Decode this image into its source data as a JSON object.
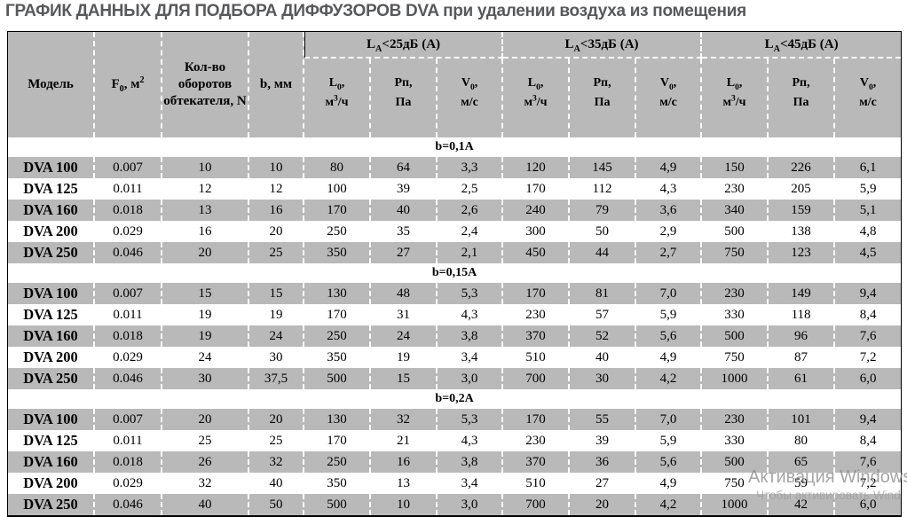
{
  "title": "ГРАФИК ДАННЫХ ДЛЯ ПОДБОРА ДИФФУЗОРОВ DVA при удалении воздуха из помещения",
  "colors": {
    "header_gray": "#b9b9b9",
    "row_gray": "#b9b9b9",
    "row_white": "#ffffff",
    "title_color": "#58595b",
    "border_black": "#000000",
    "separator_dashed": "#ffffff",
    "watermark_gray": "#8c8c8c"
  },
  "table": {
    "header": {
      "model": "Модель",
      "f0": "F~0~, м^2^",
      "turns": "Кол-во оборотов обтекателя, N",
      "b": "b, мм",
      "groups": [
        "L~A~<25дБ (А)",
        "L~A~<35дБ (А)",
        "L~A~<45дБ (А)"
      ],
      "subcols": [
        "L~0~,|м^3^/ч",
        "Рп,|Па",
        "V~0~,|м/с"
      ]
    },
    "sections": [
      {
        "band": "b=0,1А",
        "rows": [
          {
            "model": "DVA 100",
            "values": [
              "0.007",
              "10",
              "10",
              "80",
              "64",
              "3,3",
              "120",
              "145",
              "4,9",
              "150",
              "226",
              "6,1"
            ]
          },
          {
            "model": "DVA 125",
            "values": [
              "0.011",
              "12",
              "12",
              "100",
              "39",
              "2,5",
              "170",
              "112",
              "4,3",
              "230",
              "205",
              "5,9"
            ]
          },
          {
            "model": "DVA 160",
            "values": [
              "0.018",
              "13",
              "16",
              "170",
              "40",
              "2,6",
              "240",
              "79",
              "3,6",
              "340",
              "159",
              "5,1"
            ]
          },
          {
            "model": "DVA 200",
            "values": [
              "0.029",
              "16",
              "20",
              "250",
              "35",
              "2,4",
              "300",
              "50",
              "2,9",
              "500",
              "138",
              "4,8"
            ]
          },
          {
            "model": "DVA 250",
            "values": [
              "0.046",
              "20",
              "25",
              "350",
              "27",
              "2,1",
              "450",
              "44",
              "2,7",
              "750",
              "123",
              "4,5"
            ]
          }
        ]
      },
      {
        "band": "b=0,15А",
        "rows": [
          {
            "model": "DVA 100",
            "values": [
              "0.007",
              "15",
              "15",
              "130",
              "48",
              "5,3",
              "170",
              "81",
              "7,0",
              "230",
              "149",
              "9,4"
            ]
          },
          {
            "model": "DVA 125",
            "values": [
              "0.011",
              "19",
              "19",
              "170",
              "31",
              "4,3",
              "230",
              "57",
              "5,9",
              "330",
              "118",
              "8,4"
            ]
          },
          {
            "model": "DVA 160",
            "values": [
              "0.018",
              "19",
              "24",
              "250",
              "24",
              "3,8",
              "370",
              "52",
              "5,6",
              "500",
              "96",
              "7,6"
            ]
          },
          {
            "model": "DVA 200",
            "values": [
              "0.029",
              "24",
              "30",
              "350",
              "19",
              "3,4",
              "510",
              "40",
              "4,9",
              "750",
              "87",
              "7,2"
            ]
          },
          {
            "model": "DVA 250",
            "values": [
              "0.046",
              "30",
              "37,5",
              "500",
              "15",
              "3,0",
              "700",
              "30",
              "4,2",
              "1000",
              "61",
              "6,0"
            ]
          }
        ]
      },
      {
        "band": "b=0,2А",
        "rows": [
          {
            "model": "DVA 100",
            "values": [
              "0.007",
              "20",
              "20",
              "130",
              "32",
              "5,3",
              "170",
              "55",
              "7,0",
              "230",
              "101",
              "9,4"
            ]
          },
          {
            "model": "DVA 125",
            "values": [
              "0.011",
              "25",
              "25",
              "170",
              "21",
              "4,3",
              "230",
              "39",
              "5,9",
              "330",
              "80",
              "8,4"
            ]
          },
          {
            "model": "DVA 160",
            "values": [
              "0.018",
              "26",
              "32",
              "250",
              "16",
              "3,8",
              "370",
              "36",
              "5,6",
              "500",
              "65",
              "7,6"
            ]
          },
          {
            "model": "DVA 200",
            "values": [
              "0.029",
              "32",
              "40",
              "350",
              "13",
              "3,4",
              "510",
              "27",
              "4,9",
              "750",
              "59",
              "7,2"
            ]
          },
          {
            "model": "DVA 250",
            "values": [
              "0.046",
              "40",
              "50",
              "500",
              "10",
              "3,0",
              "700",
              "20",
              "4,2",
              "1000",
              "42",
              "6,0"
            ]
          }
        ]
      }
    ]
  },
  "watermark": {
    "line1": "Активация Windows",
    "line2": "Чтобы активировать Wind"
  }
}
